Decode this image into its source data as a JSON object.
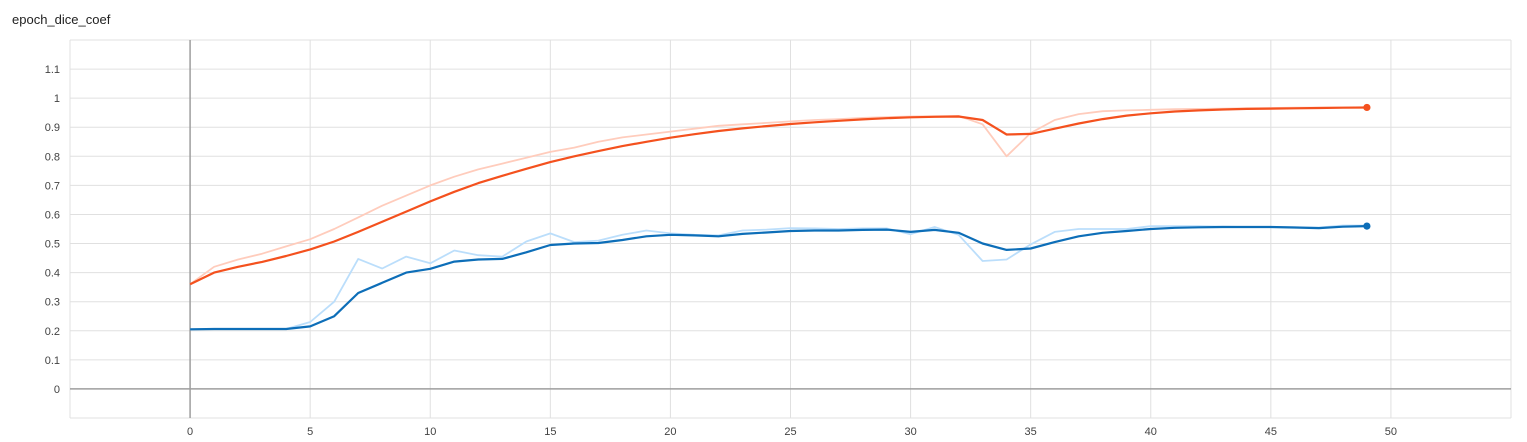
{
  "chart_data": {
    "type": "line",
    "title": "epoch_dice_coef",
    "xlabel": "",
    "ylabel": "",
    "xlim": [
      -5,
      55
    ],
    "ylim": [
      -0.1,
      1.2
    ],
    "x_ticks": [
      0,
      5,
      10,
      15,
      20,
      25,
      30,
      35,
      40,
      45,
      50
    ],
    "y_ticks": [
      0,
      0.1,
      0.2,
      0.3,
      0.4,
      0.5,
      0.6,
      0.7,
      0.8,
      0.9,
      1,
      1.1
    ],
    "grid": true,
    "legend": "none",
    "series": [
      {
        "color": "#f4511e",
        "raw_color": "#ffccbc",
        "x": [
          0,
          1,
          2,
          3,
          4,
          5,
          6,
          7,
          8,
          9,
          10,
          11,
          12,
          13,
          14,
          15,
          16,
          17,
          18,
          19,
          20,
          21,
          22,
          23,
          24,
          25,
          26,
          27,
          28,
          29,
          30,
          31,
          32,
          33,
          34,
          35,
          36,
          37,
          38,
          39,
          40,
          41,
          42,
          43,
          44,
          45,
          46,
          47,
          48,
          49
        ],
        "raw": [
          0.36,
          0.42,
          0.445,
          0.465,
          0.49,
          0.515,
          0.55,
          0.59,
          0.63,
          0.665,
          0.7,
          0.73,
          0.755,
          0.775,
          0.795,
          0.815,
          0.83,
          0.85,
          0.865,
          0.875,
          0.885,
          0.895,
          0.905,
          0.91,
          0.915,
          0.92,
          0.925,
          0.928,
          0.932,
          0.935,
          0.937,
          0.938,
          0.939,
          0.91,
          0.8,
          0.88,
          0.925,
          0.945,
          0.955,
          0.958,
          0.96,
          0.962,
          0.963,
          0.964,
          0.965,
          0.966,
          0.967,
          0.967,
          0.968,
          0.968
        ],
        "smoothed": [
          0.36,
          0.4,
          0.42,
          0.437,
          0.457,
          0.48,
          0.507,
          0.54,
          0.575,
          0.61,
          0.645,
          0.678,
          0.708,
          0.733,
          0.757,
          0.78,
          0.8,
          0.818,
          0.835,
          0.85,
          0.864,
          0.876,
          0.887,
          0.896,
          0.904,
          0.911,
          0.917,
          0.922,
          0.927,
          0.931,
          0.934,
          0.936,
          0.937,
          0.925,
          0.875,
          0.877,
          0.895,
          0.913,
          0.928,
          0.94,
          0.948,
          0.954,
          0.958,
          0.961,
          0.963,
          0.964,
          0.965,
          0.966,
          0.967,
          0.968
        ]
      },
      {
        "color": "#0d6eb8",
        "raw_color": "#bbdefb",
        "x": [
          0,
          1,
          2,
          3,
          4,
          5,
          6,
          7,
          8,
          9,
          10,
          11,
          12,
          13,
          14,
          15,
          16,
          17,
          18,
          19,
          20,
          21,
          22,
          23,
          24,
          25,
          26,
          27,
          28,
          29,
          30,
          31,
          32,
          33,
          34,
          35,
          36,
          37,
          38,
          39,
          40,
          41,
          42,
          43,
          44,
          45,
          46,
          47,
          48,
          49
        ],
        "raw": [
          0.205,
          0.206,
          0.206,
          0.206,
          0.206,
          0.23,
          0.3,
          0.447,
          0.414,
          0.455,
          0.432,
          0.476,
          0.46,
          0.455,
          0.507,
          0.535,
          0.505,
          0.51,
          0.53,
          0.545,
          0.535,
          0.53,
          0.528,
          0.545,
          0.548,
          0.553,
          0.552,
          0.55,
          0.552,
          0.552,
          0.532,
          0.557,
          0.53,
          0.44,
          0.445,
          0.497,
          0.54,
          0.55,
          0.55,
          0.55,
          0.56,
          0.56,
          0.56,
          0.558,
          0.557,
          0.557,
          0.556,
          0.555,
          0.562,
          0.562
        ],
        "smoothed": [
          0.205,
          0.206,
          0.206,
          0.206,
          0.206,
          0.215,
          0.25,
          0.33,
          0.365,
          0.4,
          0.413,
          0.438,
          0.445,
          0.447,
          0.47,
          0.495,
          0.5,
          0.502,
          0.512,
          0.525,
          0.53,
          0.528,
          0.525,
          0.533,
          0.538,
          0.543,
          0.545,
          0.545,
          0.547,
          0.548,
          0.54,
          0.547,
          0.537,
          0.5,
          0.478,
          0.483,
          0.505,
          0.525,
          0.537,
          0.543,
          0.55,
          0.554,
          0.556,
          0.557,
          0.557,
          0.557,
          0.555,
          0.553,
          0.558,
          0.56
        ]
      }
    ]
  }
}
